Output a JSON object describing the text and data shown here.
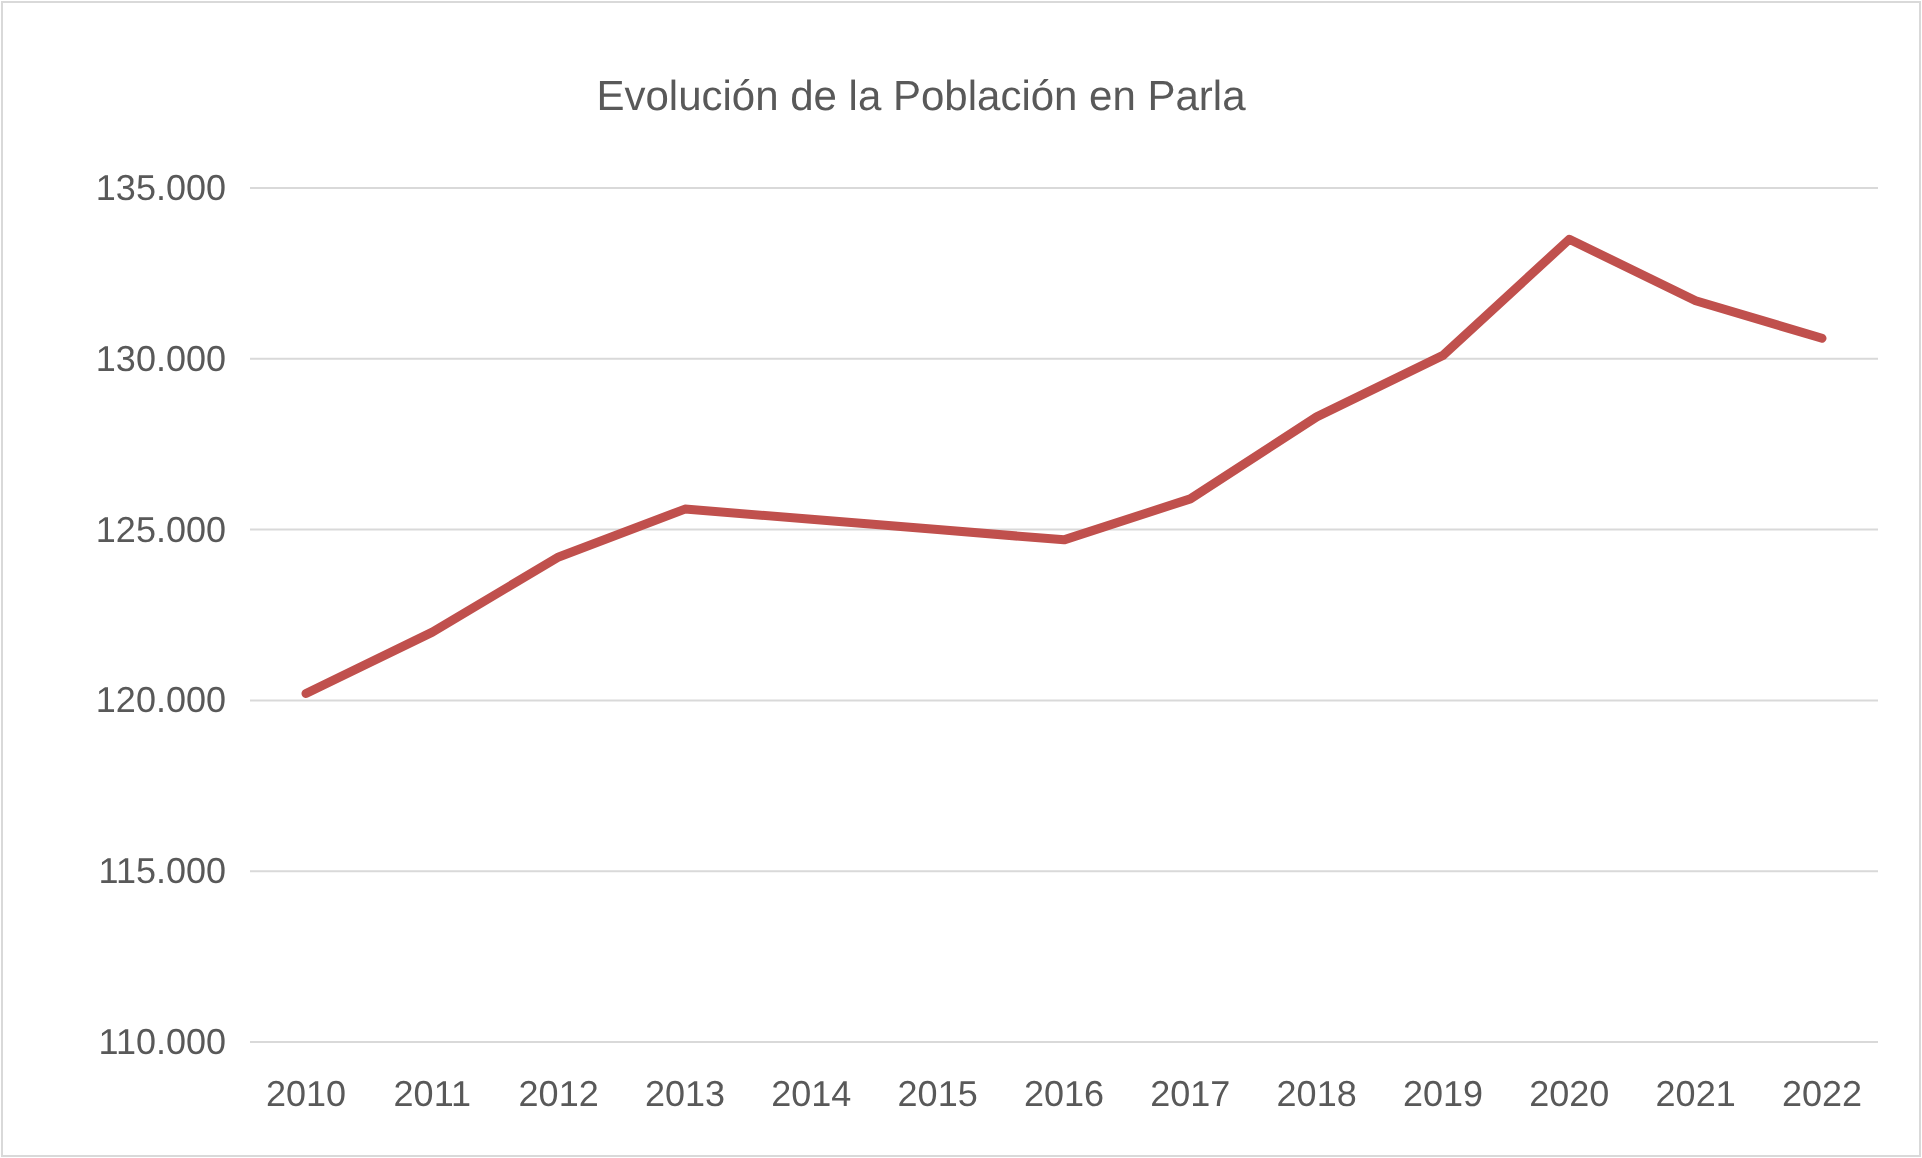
{
  "chart_data": {
    "type": "line",
    "title": "Evolución de la Población en Parla",
    "categories": [
      "2010",
      "2011",
      "2012",
      "2013",
      "2014",
      "2015",
      "2016",
      "2017",
      "2018",
      "2019",
      "2020",
      "2021",
      "2022"
    ],
    "series": [
      {
        "color": "#c0504d",
        "values": [
          120200,
          122000,
          124200,
          125600,
          125300,
          125000,
          124700,
          125900,
          128300,
          130100,
          133500,
          131700,
          130600
        ]
      }
    ],
    "ylim": [
      110000,
      135000
    ],
    "yticks": [
      {
        "value": 110000,
        "label": "110.000"
      },
      {
        "value": 115000,
        "label": "115.000"
      },
      {
        "value": 120000,
        "label": "120.000"
      },
      {
        "value": 125000,
        "label": "125.000"
      },
      {
        "value": 130000,
        "label": "130.000"
      },
      {
        "value": 135000,
        "label": "135.000"
      }
    ],
    "grid": "y",
    "marker": "none",
    "line_style": "solid"
  }
}
